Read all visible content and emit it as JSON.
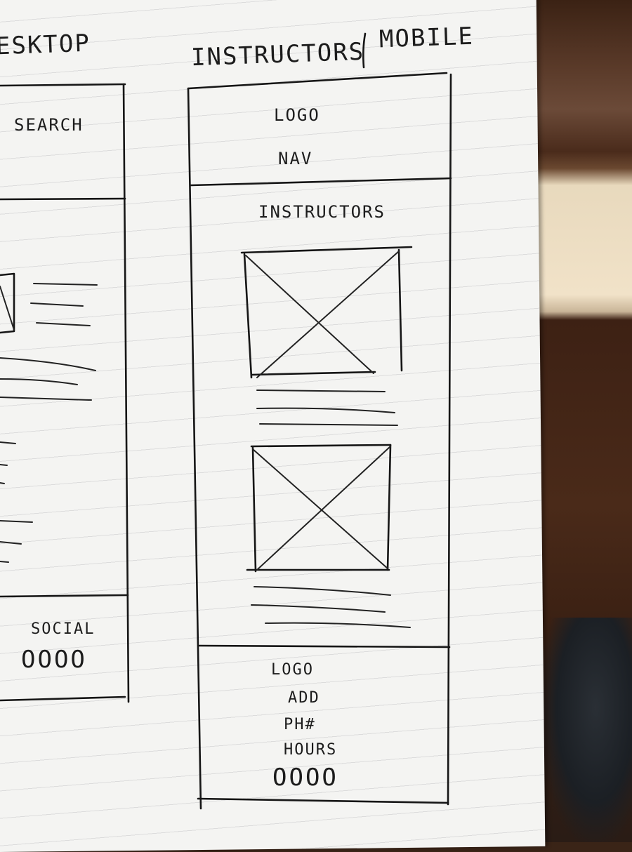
{
  "desktop_sketch": {
    "title": "ESKTOP",
    "header_label": "SEARCH",
    "footer_label": "SOCIAL",
    "footer_icons": "OOOO"
  },
  "mobile_sketch": {
    "title": "INSTRUCTORS",
    "title_suffix": "MOBILE",
    "header": {
      "logo": "LOGO",
      "nav": "NAV"
    },
    "main": {
      "heading": "INSTRUCTORS",
      "image_placeholders": 2,
      "text_lines_per_card": 3
    },
    "footer": {
      "logo": "LOGO",
      "address": "ADD",
      "phone": "PH#",
      "hours": "HOURS",
      "icons": "OOOO"
    }
  }
}
